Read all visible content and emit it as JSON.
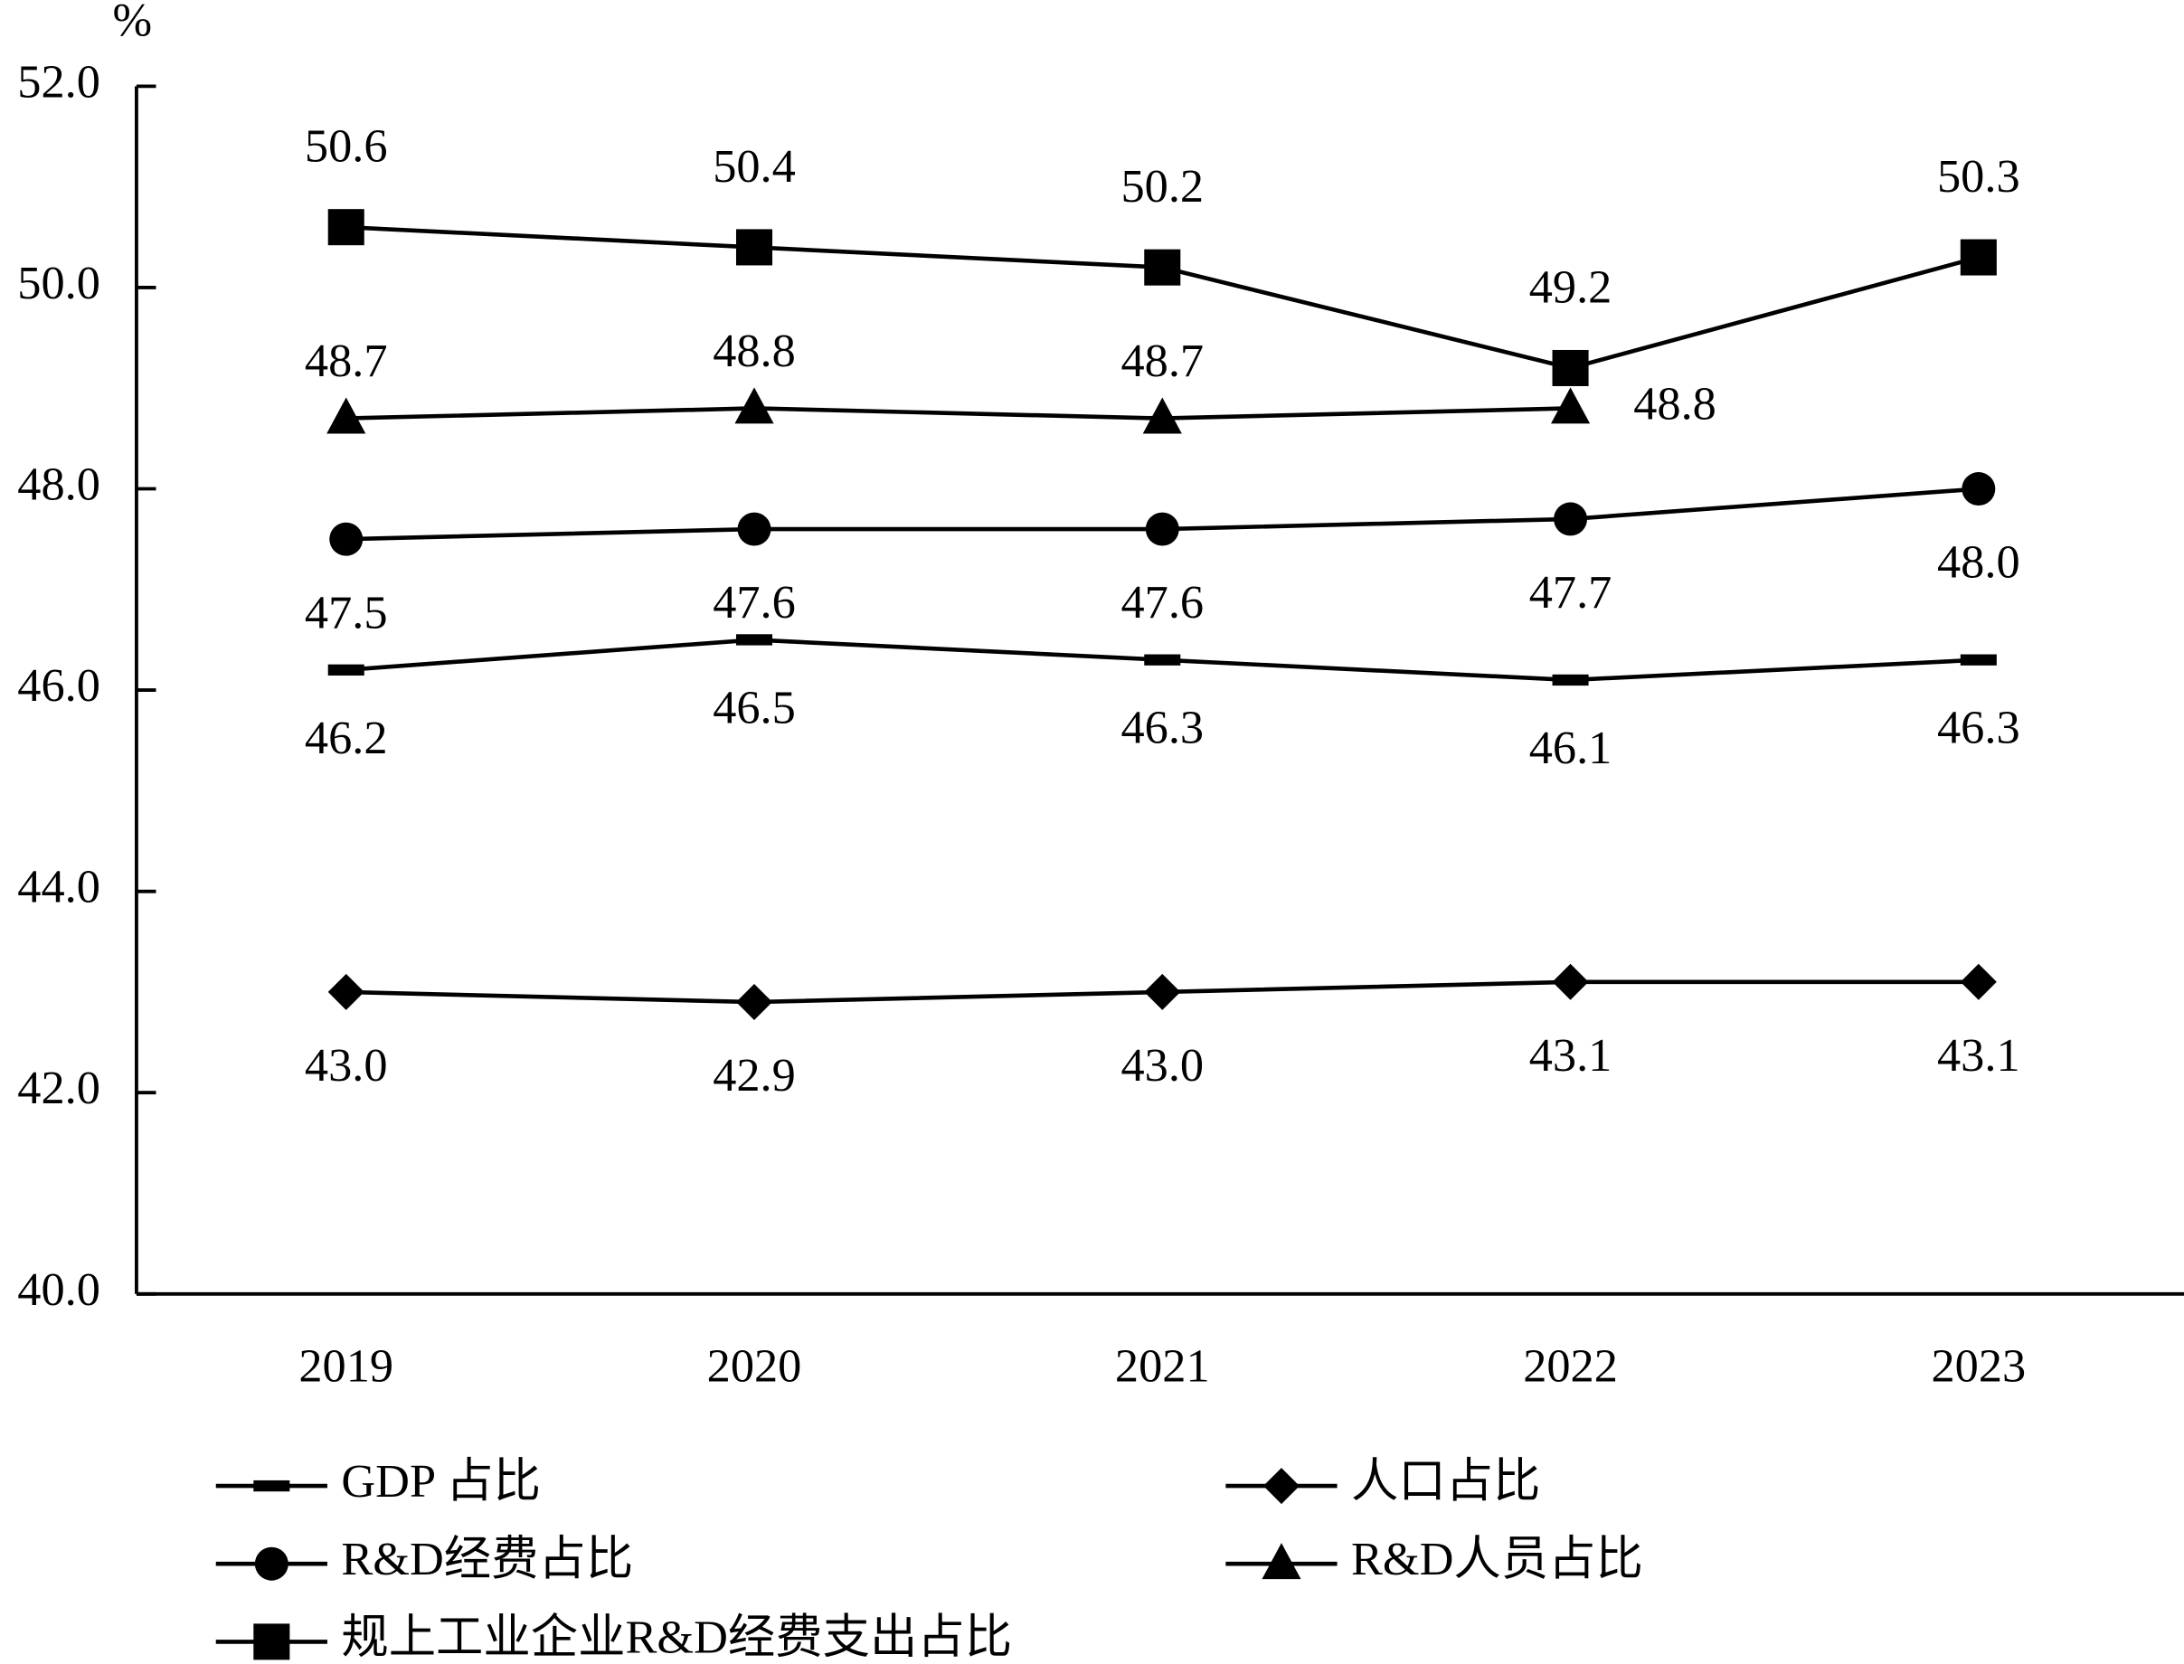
{
  "chart_data": {
    "type": "line",
    "y_unit": "%",
    "categories": [
      "2019",
      "2020",
      "2021",
      "2022",
      "2023"
    ],
    "ylim": [
      40,
      52
    ],
    "yticks": [
      {
        "value": 40,
        "label": "40.0"
      },
      {
        "value": 42,
        "label": "42.0"
      },
      {
        "value": 44,
        "label": "44.0"
      },
      {
        "value": 46,
        "label": "46.0"
      },
      {
        "value": 48,
        "label": "48.0"
      },
      {
        "value": 50,
        "label": "50.0"
      },
      {
        "value": 52,
        "label": "52.0"
      }
    ],
    "grid": false,
    "series": [
      {
        "name": "GDP 占比",
        "color": "#000000",
        "marker": "dash",
        "values": [
          46.2,
          46.5,
          46.3,
          46.1,
          46.3
        ],
        "value_labels": [
          "46.2",
          "46.5",
          "46.3",
          "46.1",
          "46.3"
        ]
      },
      {
        "name": "人口占比",
        "color": "#000000",
        "marker": "diamond",
        "values": [
          43.0,
          42.9,
          43.0,
          43.1,
          43.1
        ],
        "value_labels": [
          "43.0",
          "42.9",
          "43.0",
          "43.1",
          "43.1"
        ]
      },
      {
        "name": "R&D经费占比",
        "color": "#000000",
        "marker": "circle",
        "values": [
          47.5,
          47.6,
          47.6,
          47.7,
          48.0
        ],
        "value_labels": [
          "47.5",
          "47.6",
          "47.6",
          "47.7",
          "48.0"
        ]
      },
      {
        "name": "R&D人员占比",
        "color": "#000000",
        "marker": "triangle",
        "values": [
          48.7,
          48.8,
          48.7,
          48.8,
          null
        ],
        "value_labels": [
          "48.7",
          "48.8",
          "48.7",
          "48.8",
          null
        ]
      },
      {
        "name": "规上工业企业R&D经费支出占比",
        "color": "#000000",
        "marker": "square",
        "values": [
          50.6,
          50.4,
          50.2,
          49.2,
          50.3
        ],
        "value_labels": [
          "50.6",
          "50.4",
          "50.2",
          "49.2",
          "50.3"
        ]
      }
    ]
  }
}
